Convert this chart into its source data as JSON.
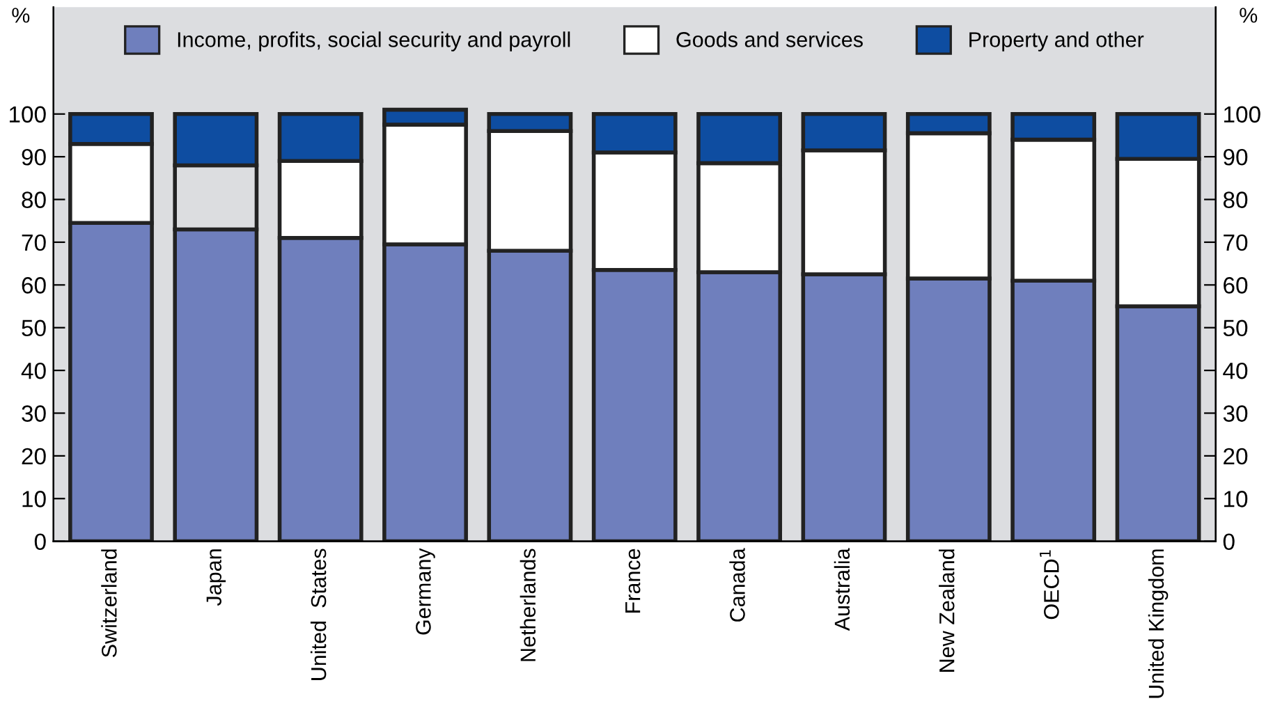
{
  "chart_data": {
    "type": "bar",
    "stacked": true,
    "categories": [
      "Switzerland",
      "Japan",
      "United  States",
      "Germany",
      "Netherlands",
      "France",
      "Canada",
      "Australia",
      "New Zealand",
      "OECD$^{1}$",
      "United Kingdom"
    ],
    "series": [
      {
        "name": "Income, profits, social security and payroll",
        "color": "#6f7fbd",
        "values": [
          74.5,
          73,
          71,
          69.5,
          68,
          63.5,
          63,
          62.5,
          61.5,
          61,
          55
        ]
      },
      {
        "name": "Goods and services",
        "color": "#ffffff",
        "colors": [
          "#ffffff",
          "#dcdde0",
          "#ffffff",
          "#ffffff",
          "#ffffff",
          "#ffffff",
          "#ffffff",
          "#ffffff",
          "#ffffff",
          "#ffffff",
          "#ffffff"
        ],
        "values": [
          18.5,
          15,
          18,
          28,
          28,
          27.5,
          25.5,
          29,
          34,
          33,
          34.5
        ]
      },
      {
        "name": "Property and other",
        "color": "#0e4da1",
        "values": [
          7,
          12,
          11,
          3.5,
          4,
          9,
          11.5,
          8.5,
          4.5,
          6,
          10.5
        ]
      }
    ],
    "ylabel": "%",
    "y2label": "%",
    "ylim": [
      0,
      125
    ],
    "yticks": [
      0,
      10,
      20,
      30,
      40,
      50,
      60,
      70,
      80,
      90,
      100
    ],
    "y2lim": [
      0,
      125
    ],
    "y2ticks": [
      0,
      10,
      20,
      30,
      40,
      50,
      60,
      70,
      80,
      90,
      100
    ],
    "legend": "top",
    "grid": false
  }
}
